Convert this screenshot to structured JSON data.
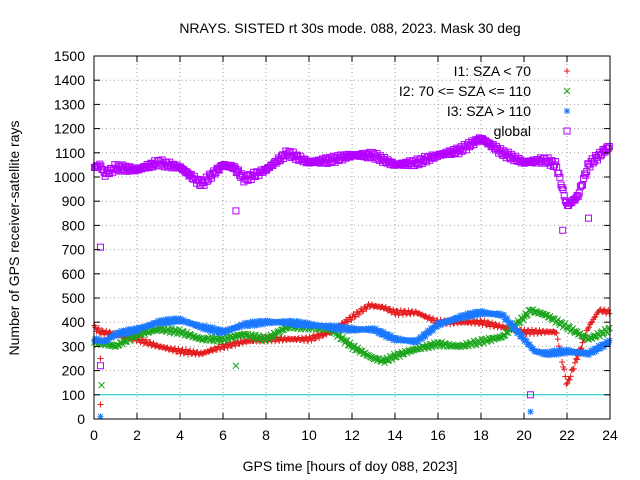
{
  "chart_data": {
    "type": "scatter",
    "title": "NRAYS. SISTED rt 30s mode. 088, 2023. Mask 30 deg",
    "xlabel": "GPS time [hours of doy 088, 2023]",
    "ylabel": "Number of GPS receiver-satellite rays",
    "xlim": [
      0,
      24
    ],
    "ylim": [
      0,
      1500
    ],
    "xticks": [
      "0",
      "2",
      "4",
      "6",
      "8",
      "10",
      "12",
      "14",
      "16",
      "18",
      "20",
      "22",
      "24"
    ],
    "yticks": [
      "0",
      "100",
      "200",
      "300",
      "400",
      "500",
      "600",
      "700",
      "800",
      "900",
      "1000",
      "1100",
      "1200",
      "1300",
      "1400",
      "1500"
    ],
    "grid": true,
    "legend_position": "top-right",
    "reference_line": {
      "y": 100,
      "color": "#00c8c8"
    },
    "series": [
      {
        "name": "I1: SZA < 70",
        "marker": "+",
        "color": "#e41a1c",
        "x": [
          0.0,
          0.3,
          1.0,
          2.0,
          3.0,
          4.0,
          5.0,
          6.0,
          7.0,
          8.0,
          9.0,
          10.0,
          11.0,
          12.0,
          12.8,
          13.5,
          14.0,
          15.0,
          16.0,
          17.0,
          18.0,
          19.0,
          20.0,
          20.3,
          21.0,
          21.5,
          22.0,
          22.5,
          23.0,
          23.5,
          24.0
        ],
        "values": [
          380,
          360,
          350,
          330,
          300,
          280,
          270,
          300,
          320,
          330,
          330,
          330,
          360,
          420,
          470,
          460,
          440,
          440,
          400,
          400,
          400,
          380,
          360,
          360,
          360,
          360,
          140,
          260,
          380,
          450,
          440
        ]
      },
      {
        "name": "I2: 70 <= SZA <= 110",
        "marker": "x",
        "color": "#1aa51a",
        "x": [
          0.0,
          0.5,
          1.0,
          2.0,
          3.0,
          4.0,
          5.0,
          6.0,
          7.0,
          8.0,
          9.0,
          10.0,
          11.0,
          12.0,
          13.0,
          13.5,
          14.0,
          15.0,
          16.0,
          17.0,
          18.0,
          19.0,
          20.0,
          20.3,
          21.0,
          22.0,
          23.0,
          24.0
        ],
        "values": [
          320,
          310,
          300,
          350,
          370,
          360,
          330,
          330,
          350,
          330,
          380,
          380,
          370,
          300,
          250,
          240,
          260,
          290,
          310,
          300,
          320,
          340,
          420,
          450,
          430,
          380,
          330,
          370
        ]
      },
      {
        "name": "I3: SZA > 110",
        "marker": "*",
        "color": "#1a78ff",
        "x": [
          0.0,
          0.5,
          1.0,
          2.0,
          3.0,
          4.0,
          5.0,
          6.0,
          7.0,
          8.0,
          9.0,
          10.0,
          11.0,
          12.0,
          13.0,
          14.0,
          15.0,
          16.0,
          17.0,
          18.0,
          19.0,
          20.0,
          20.5,
          21.0,
          22.0,
          23.0,
          24.0
        ],
        "values": [
          330,
          320,
          350,
          370,
          400,
          410,
          380,
          360,
          390,
          400,
          400,
          390,
          380,
          370,
          370,
          330,
          320,
          390,
          420,
          440,
          430,
          330,
          280,
          270,
          280,
          270,
          320
        ]
      },
      {
        "name": "global",
        "marker": "square",
        "color": "#b400ff",
        "x": [
          0.0,
          0.3,
          0.5,
          1.0,
          2.0,
          3.0,
          4.0,
          5.0,
          6.0,
          6.5,
          7.0,
          8.0,
          9.0,
          10.0,
          11.0,
          12.0,
          13.0,
          14.0,
          15.0,
          16.0,
          17.0,
          18.0,
          19.0,
          20.0,
          21.0,
          21.5,
          22.0,
          22.5,
          23.0,
          23.5,
          24.0
        ],
        "values": [
          1040,
          1050,
          1010,
          1040,
          1030,
          1060,
          1040,
          970,
          1050,
          1040,
          990,
          1030,
          1100,
          1060,
          1070,
          1090,
          1090,
          1050,
          1060,
          1090,
          1110,
          1160,
          1100,
          1060,
          1070,
          1050,
          880,
          920,
          1050,
          1090,
          1130
        ]
      }
    ],
    "outliers": [
      {
        "series": "I1: SZA < 70",
        "x": 0.3,
        "y": 60
      },
      {
        "series": "I1: SZA < 70",
        "x": 0.3,
        "y": 250
      },
      {
        "series": "I2: 70 <= SZA <= 110",
        "x": 0.35,
        "y": 140
      },
      {
        "series": "I2: 70 <= SZA <= 110",
        "x": 6.6,
        "y": 220
      },
      {
        "series": "I3: SZA > 110",
        "x": 0.3,
        "y": 10
      },
      {
        "series": "I3: SZA > 110",
        "x": 20.3,
        "y": 30
      },
      {
        "series": "global",
        "x": 0.3,
        "y": 710
      },
      {
        "series": "global",
        "x": 0.3,
        "y": 220
      },
      {
        "series": "global",
        "x": 6.6,
        "y": 860
      },
      {
        "series": "global",
        "x": 20.3,
        "y": 100
      },
      {
        "series": "global",
        "x": 21.8,
        "y": 780
      },
      {
        "series": "global",
        "x": 23.0,
        "y": 830
      }
    ]
  }
}
